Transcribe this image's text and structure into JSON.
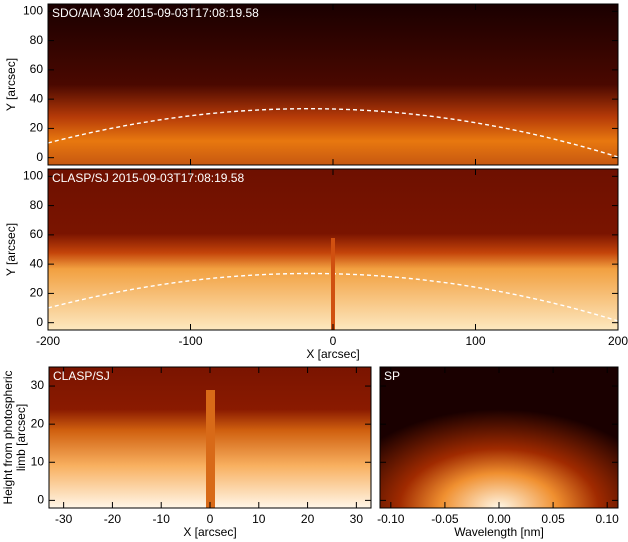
{
  "chart_data": [
    {
      "type": "image",
      "title": "SDO/AIA 304  2015-09-03T17:08:19.58",
      "ylabel": "Y [arcsec]",
      "xlim": [
        -200,
        200
      ],
      "ylim": [
        -5,
        105
      ],
      "yticks": [
        0,
        20,
        40,
        60,
        80,
        100
      ]
    },
    {
      "type": "image",
      "title": "CLASP/SJ 2015-09-03T17:08:19.58",
      "ylabel": "Y [arcsec]",
      "xlabel": "X [arcsec]",
      "xlim": [
        -200,
        200
      ],
      "ylim": [
        -5,
        105
      ],
      "xticks": [
        -200,
        -100,
        0,
        100,
        200
      ],
      "yticks": [
        0,
        20,
        40,
        60,
        80,
        100
      ]
    },
    {
      "type": "image",
      "title": "CLASP/SJ",
      "ylabel": [
        "Height from photospheric",
        "limb [arcsec]"
      ],
      "xlabel": "X [arcsec]",
      "xlim": [
        -33,
        33
      ],
      "ylim": [
        -2,
        35
      ],
      "xticks": [
        -30,
        -20,
        -10,
        0,
        10,
        20,
        30
      ],
      "yticks": [
        0,
        10,
        20,
        30
      ]
    },
    {
      "type": "image",
      "title": "SP",
      "xlabel": "Wavelength [nm]",
      "xlim": [
        -0.11,
        0.11
      ],
      "ylim": [
        -2,
        35
      ],
      "xticks": [
        {
          "value": -0.1,
          "label": "-0.10"
        },
        {
          "value": -0.05,
          "label": "-0.05"
        },
        {
          "value": 0,
          "label": "0.00"
        },
        {
          "value": 0.05,
          "label": "0.05"
        },
        {
          "value": 0.1,
          "label": "0.10"
        }
      ]
    }
  ]
}
